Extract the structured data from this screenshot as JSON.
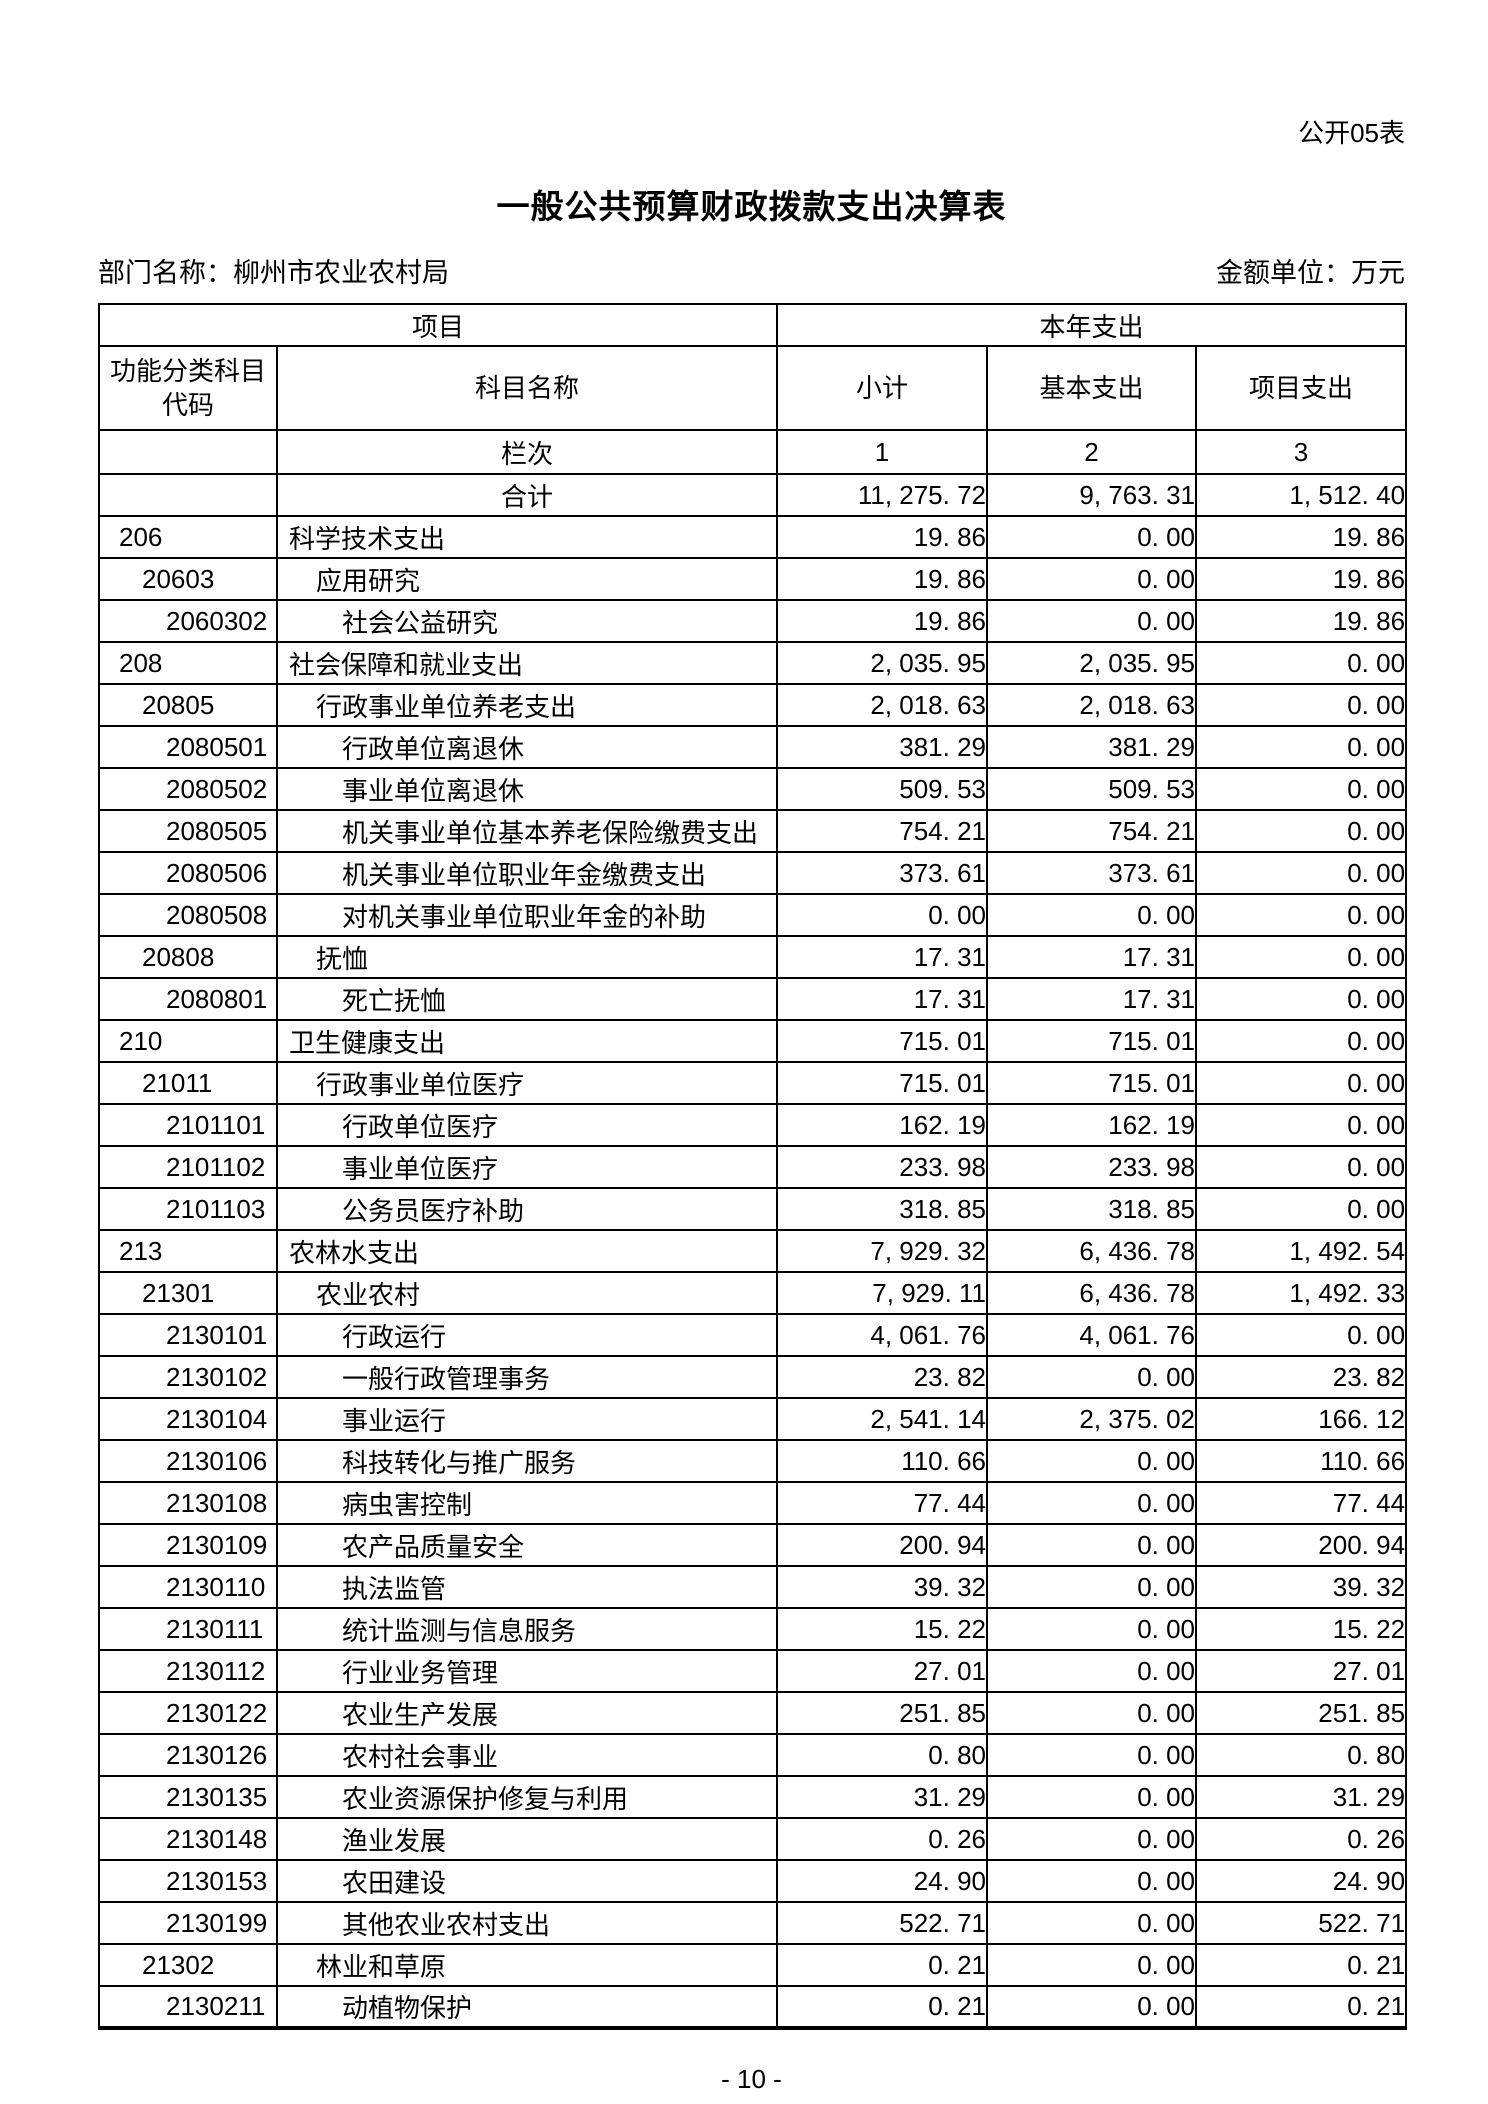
{
  "page": {
    "doc_label": "公开05表",
    "title": "一般公共预算财政拨款支出决算表",
    "department_label": "部门名称：柳州市农业农村局",
    "unit_label": "金额单位：万元",
    "page_number": "- 10 -"
  },
  "table": {
    "header": {
      "project_group": "项目",
      "year_expense_group": "本年支出",
      "code_col_line1": "功能分类科目",
      "code_col_line2": "代码",
      "name_col": "科目名称",
      "subtotal_col": "小计",
      "basic_col": "基本支出",
      "project_col": "项目支出",
      "lanci_label": "栏次",
      "col_index_1": "1",
      "col_index_2": "2",
      "col_index_3": "3"
    },
    "rows": [
      {
        "code": "",
        "name": "合计",
        "level": 0,
        "subtotal": "11, 275. 72",
        "basic": "9, 763. 31",
        "project": "1, 512. 40"
      },
      {
        "code": "206",
        "name": "科学技术支出",
        "level": 1,
        "subtotal": "19. 86",
        "basic": "0. 00",
        "project": "19. 86"
      },
      {
        "code": "20603",
        "name": "应用研究",
        "level": 2,
        "subtotal": "19. 86",
        "basic": "0. 00",
        "project": "19. 86"
      },
      {
        "code": "2060302",
        "name": "社会公益研究",
        "level": 3,
        "subtotal": "19. 86",
        "basic": "0. 00",
        "project": "19. 86"
      },
      {
        "code": "208",
        "name": "社会保障和就业支出",
        "level": 1,
        "subtotal": "2, 035. 95",
        "basic": "2, 035. 95",
        "project": "0. 00"
      },
      {
        "code": "20805",
        "name": "行政事业单位养老支出",
        "level": 2,
        "subtotal": "2, 018. 63",
        "basic": "2, 018. 63",
        "project": "0. 00"
      },
      {
        "code": "2080501",
        "name": "行政单位离退休",
        "level": 3,
        "subtotal": "381. 29",
        "basic": "381. 29",
        "project": "0. 00"
      },
      {
        "code": "2080502",
        "name": "事业单位离退休",
        "level": 3,
        "subtotal": "509. 53",
        "basic": "509. 53",
        "project": "0. 00"
      },
      {
        "code": "2080505",
        "name": "机关事业单位基本养老保险缴费支出",
        "level": 3,
        "subtotal": "754. 21",
        "basic": "754. 21",
        "project": "0. 00"
      },
      {
        "code": "2080506",
        "name": "机关事业单位职业年金缴费支出",
        "level": 3,
        "subtotal": "373. 61",
        "basic": "373. 61",
        "project": "0. 00"
      },
      {
        "code": "2080508",
        "name": "对机关事业单位职业年金的补助",
        "level": 3,
        "subtotal": "0. 00",
        "basic": "0. 00",
        "project": "0. 00"
      },
      {
        "code": "20808",
        "name": "抚恤",
        "level": 2,
        "subtotal": "17. 31",
        "basic": "17. 31",
        "project": "0. 00"
      },
      {
        "code": "2080801",
        "name": "死亡抚恤",
        "level": 3,
        "subtotal": "17. 31",
        "basic": "17. 31",
        "project": "0. 00"
      },
      {
        "code": "210",
        "name": "卫生健康支出",
        "level": 1,
        "subtotal": "715. 01",
        "basic": "715. 01",
        "project": "0. 00"
      },
      {
        "code": "21011",
        "name": "行政事业单位医疗",
        "level": 2,
        "subtotal": "715. 01",
        "basic": "715. 01",
        "project": "0. 00"
      },
      {
        "code": "2101101",
        "name": "行政单位医疗",
        "level": 3,
        "subtotal": "162. 19",
        "basic": "162. 19",
        "project": "0. 00"
      },
      {
        "code": "2101102",
        "name": "事业单位医疗",
        "level": 3,
        "subtotal": "233. 98",
        "basic": "233. 98",
        "project": "0. 00"
      },
      {
        "code": "2101103",
        "name": "公务员医疗补助",
        "level": 3,
        "subtotal": "318. 85",
        "basic": "318. 85",
        "project": "0. 00"
      },
      {
        "code": "213",
        "name": "农林水支出",
        "level": 1,
        "subtotal": "7, 929. 32",
        "basic": "6, 436. 78",
        "project": "1, 492. 54"
      },
      {
        "code": "21301",
        "name": "农业农村",
        "level": 2,
        "subtotal": "7, 929. 11",
        "basic": "6, 436. 78",
        "project": "1, 492. 33"
      },
      {
        "code": "2130101",
        "name": "行政运行",
        "level": 3,
        "subtotal": "4, 061. 76",
        "basic": "4, 061. 76",
        "project": "0. 00"
      },
      {
        "code": "2130102",
        "name": "一般行政管理事务",
        "level": 3,
        "subtotal": "23. 82",
        "basic": "0. 00",
        "project": "23. 82"
      },
      {
        "code": "2130104",
        "name": "事业运行",
        "level": 3,
        "subtotal": "2, 541. 14",
        "basic": "2, 375. 02",
        "project": "166. 12"
      },
      {
        "code": "2130106",
        "name": "科技转化与推广服务",
        "level": 3,
        "subtotal": "110. 66",
        "basic": "0. 00",
        "project": "110. 66"
      },
      {
        "code": "2130108",
        "name": "病虫害控制",
        "level": 3,
        "subtotal": "77. 44",
        "basic": "0. 00",
        "project": "77. 44"
      },
      {
        "code": "2130109",
        "name": "农产品质量安全",
        "level": 3,
        "subtotal": "200. 94",
        "basic": "0. 00",
        "project": "200. 94"
      },
      {
        "code": "2130110",
        "name": "执法监管",
        "level": 3,
        "subtotal": "39. 32",
        "basic": "0. 00",
        "project": "39. 32"
      },
      {
        "code": "2130111",
        "name": "统计监测与信息服务",
        "level": 3,
        "subtotal": "15. 22",
        "basic": "0. 00",
        "project": "15. 22"
      },
      {
        "code": "2130112",
        "name": "行业业务管理",
        "level": 3,
        "subtotal": "27. 01",
        "basic": "0. 00",
        "project": "27. 01"
      },
      {
        "code": "2130122",
        "name": "农业生产发展",
        "level": 3,
        "subtotal": "251. 85",
        "basic": "0. 00",
        "project": "251. 85"
      },
      {
        "code": "2130126",
        "name": "农村社会事业",
        "level": 3,
        "subtotal": "0. 80",
        "basic": "0. 00",
        "project": "0. 80"
      },
      {
        "code": "2130135",
        "name": "农业资源保护修复与利用",
        "level": 3,
        "subtotal": "31. 29",
        "basic": "0. 00",
        "project": "31. 29"
      },
      {
        "code": "2130148",
        "name": "渔业发展",
        "level": 3,
        "subtotal": "0. 26",
        "basic": "0. 00",
        "project": "0. 26"
      },
      {
        "code": "2130153",
        "name": "农田建设",
        "level": 3,
        "subtotal": "24. 90",
        "basic": "0. 00",
        "project": "24. 90"
      },
      {
        "code": "2130199",
        "name": "其他农业农村支出",
        "level": 3,
        "subtotal": "522. 71",
        "basic": "0. 00",
        "project": "522. 71"
      },
      {
        "code": "21302",
        "name": "林业和草原",
        "level": 2,
        "subtotal": "0. 21",
        "basic": "0. 00",
        "project": "0. 21"
      },
      {
        "code": "2130211",
        "name": "动植物保护",
        "level": 3,
        "subtotal": "0. 21",
        "basic": "0. 00",
        "project": "0. 21"
      }
    ]
  }
}
